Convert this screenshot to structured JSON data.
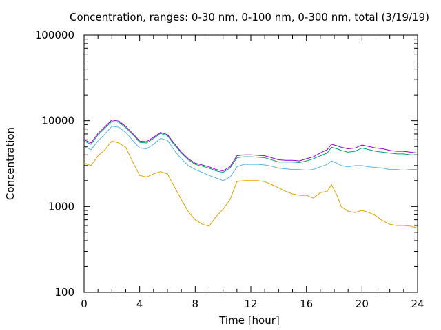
{
  "chart_data": {
    "type": "line",
    "title": "Concentration, ranges: 0-30 nm, 0-100 nm, 0-300 nm, total (3/19/19)",
    "xlabel": "Time [hour]",
    "ylabel": "Concentration",
    "xlim": [
      0,
      24
    ],
    "ylim": [
      100,
      100000
    ],
    "yscale": "log",
    "grid": false,
    "legend": "none",
    "xticks": [
      {
        "value": 0,
        "label": "0"
      },
      {
        "value": 4,
        "label": "4"
      },
      {
        "value": 8,
        "label": "8"
      },
      {
        "value": 12,
        "label": "12"
      },
      {
        "value": 16,
        "label": "16"
      },
      {
        "value": 20,
        "label": "20"
      },
      {
        "value": 24,
        "label": "24"
      }
    ],
    "yticks": [
      {
        "value": 100,
        "label": "100"
      },
      {
        "value": 1000,
        "label": "1000"
      },
      {
        "value": 10000,
        "label": "10000"
      },
      {
        "value": 100000,
        "label": "100000"
      }
    ],
    "series": [
      {
        "color": "#e69f00",
        "x": [
          0,
          0.5,
          1,
          1.5,
          2,
          2.5,
          3,
          3.5,
          4,
          4.5,
          5,
          5.5,
          6,
          6.5,
          7,
          7.5,
          8,
          8.5,
          9,
          9.5,
          10,
          10.5,
          11,
          11.5,
          12,
          12.5,
          13,
          13.5,
          14,
          14.5,
          15,
          15.5,
          16,
          16.5,
          17,
          17.5,
          17.8,
          18.2,
          18.5,
          19,
          19.5,
          20,
          20.5,
          21,
          21.5,
          22,
          22.5,
          23,
          23.5,
          24
        ],
        "y": [
          3200,
          3000,
          3900,
          4600,
          5800,
          5500,
          4900,
          3300,
          2300,
          2200,
          2400,
          2550,
          2400,
          1700,
          1200,
          870,
          700,
          620,
          590,
          760,
          930,
          1200,
          1950,
          2000,
          2000,
          2000,
          1950,
          1800,
          1650,
          1500,
          1400,
          1350,
          1350,
          1250,
          1450,
          1500,
          1800,
          1350,
          1000,
          880,
          850,
          900,
          850,
          780,
          680,
          620,
          600,
          600,
          590,
          560
        ]
      },
      {
        "color": "#56b4e9",
        "x": [
          0,
          0.5,
          1,
          1.5,
          2,
          2.5,
          3,
          3.5,
          4,
          4.5,
          5,
          5.5,
          6,
          6.5,
          7,
          7.5,
          8,
          8.5,
          9,
          9.5,
          10,
          10.5,
          11,
          11.5,
          12,
          12.5,
          13,
          13.5,
          14,
          14.5,
          15,
          15.5,
          16,
          16.5,
          17,
          17.5,
          17.8,
          18.2,
          18.5,
          19,
          19.5,
          20,
          20.5,
          21,
          21.5,
          22,
          22.5,
          23,
          23.5,
          24
        ],
        "y": [
          5000,
          4600,
          5800,
          7000,
          8600,
          8400,
          7300,
          5900,
          4800,
          4700,
          5300,
          6200,
          5900,
          4500,
          3600,
          3000,
          2700,
          2500,
          2300,
          2150,
          2000,
          2200,
          2900,
          3100,
          3100,
          3100,
          3050,
          2950,
          2800,
          2750,
          2700,
          2700,
          2650,
          2700,
          2900,
          3100,
          3400,
          3200,
          3000,
          2900,
          3000,
          3000,
          2900,
          2850,
          2800,
          2700,
          2700,
          2650,
          2700,
          2700
        ]
      },
      {
        "color": "#009e73",
        "x": [
          0,
          0.5,
          1,
          1.5,
          2,
          2.5,
          3,
          3.5,
          4,
          4.5,
          5,
          5.5,
          6,
          6.5,
          7,
          7.5,
          8,
          8.5,
          9,
          9.5,
          10,
          10.5,
          11,
          11.5,
          12,
          12.5,
          13,
          13.5,
          14,
          14.5,
          15,
          15.5,
          16,
          16.5,
          17,
          17.5,
          17.8,
          18.2,
          18.5,
          19,
          19.5,
          20,
          20.5,
          21,
          21.5,
          22,
          22.5,
          23,
          23.5,
          24
        ],
        "y": [
          5800,
          5300,
          6800,
          8200,
          9800,
          9600,
          8300,
          6900,
          5600,
          5500,
          6200,
          7100,
          6700,
          5200,
          4200,
          3500,
          3100,
          2950,
          2800,
          2600,
          2500,
          2800,
          3700,
          3800,
          3800,
          3750,
          3700,
          3500,
          3300,
          3300,
          3300,
          3250,
          3400,
          3600,
          3900,
          4200,
          4900,
          4700,
          4500,
          4300,
          4400,
          4800,
          4600,
          4400,
          4300,
          4200,
          4100,
          4100,
          4000,
          4000
        ]
      },
      {
        "color": "#9400d3",
        "x": [
          0,
          0.5,
          1,
          1.5,
          2,
          2.5,
          3,
          3.5,
          4,
          4.5,
          5,
          5.5,
          6,
          6.5,
          7,
          7.5,
          8,
          8.5,
          9,
          9.5,
          10,
          10.5,
          11,
          11.5,
          12,
          12.5,
          13,
          13.5,
          14,
          14.5,
          15,
          15.5,
          16,
          16.5,
          17,
          17.5,
          17.8,
          18.2,
          18.5,
          19,
          19.5,
          20,
          20.5,
          21,
          21.5,
          22,
          22.5,
          23,
          23.5,
          24
        ],
        "y": [
          6000,
          5500,
          7100,
          8500,
          10200,
          9900,
          8600,
          7100,
          5800,
          5700,
          6400,
          7300,
          6900,
          5400,
          4300,
          3600,
          3200,
          3050,
          2900,
          2700,
          2600,
          2900,
          3900,
          4000,
          4000,
          3950,
          3900,
          3700,
          3500,
          3450,
          3450,
          3400,
          3600,
          3800,
          4200,
          4600,
          5300,
          5100,
          4900,
          4700,
          4800,
          5200,
          5000,
          4800,
          4700,
          4500,
          4400,
          4400,
          4300,
          4200
        ]
      }
    ]
  }
}
